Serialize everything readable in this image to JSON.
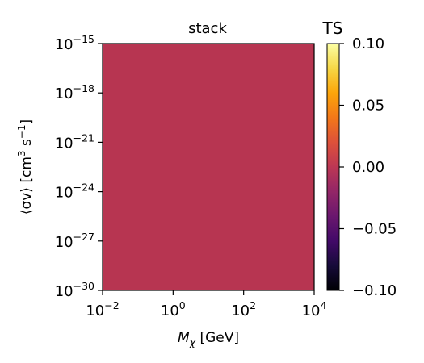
{
  "chart_data": {
    "type": "heatmap",
    "title": "stack",
    "xlabel": {
      "symbol": "M",
      "subscript": "χ",
      "unit": "[GeV]"
    },
    "ylabel": {
      "symbol": "⟨σv⟩",
      "unit_open": "[cm",
      "unit_exp": "3",
      "unit_mid": " s",
      "unit_exp2": "−1",
      "unit_close": "]"
    },
    "x_scale": "log",
    "y_scale": "log",
    "xlim": [
      0.01,
      10000
    ],
    "ylim": [
      1e-30,
      1e-15
    ],
    "x_ticks": [
      {
        "base": "10",
        "exp": "−2",
        "value": 0.01
      },
      {
        "base": "10",
        "exp": "0",
        "value": 1
      },
      {
        "base": "10",
        "exp": "2",
        "value": 100
      },
      {
        "base": "10",
        "exp": "4",
        "value": 10000
      }
    ],
    "y_ticks": [
      {
        "base": "10",
        "exp": "−15",
        "value": 1e-15
      },
      {
        "base": "10",
        "exp": "−18",
        "value": 1e-18
      },
      {
        "base": "10",
        "exp": "−21",
        "value": 1e-21
      },
      {
        "base": "10",
        "exp": "−24",
        "value": 1e-24
      },
      {
        "base": "10",
        "exp": "−27",
        "value": 1e-27
      },
      {
        "base": "10",
        "exp": "−30",
        "value": 1e-30
      }
    ],
    "z_value": 0.0,
    "fill_color": "#b73551",
    "colorbar": {
      "title": "TS",
      "colormap": "inferno",
      "range": [
        -0.1,
        0.1
      ],
      "ticks": [
        {
          "label": "0.10",
          "value": 0.1
        },
        {
          "label": "0.05",
          "value": 0.05
        },
        {
          "label": "0.00",
          "value": 0.0
        },
        {
          "label": "−0.05",
          "value": -0.05
        },
        {
          "label": "−0.10",
          "value": -0.1
        }
      ]
    }
  }
}
